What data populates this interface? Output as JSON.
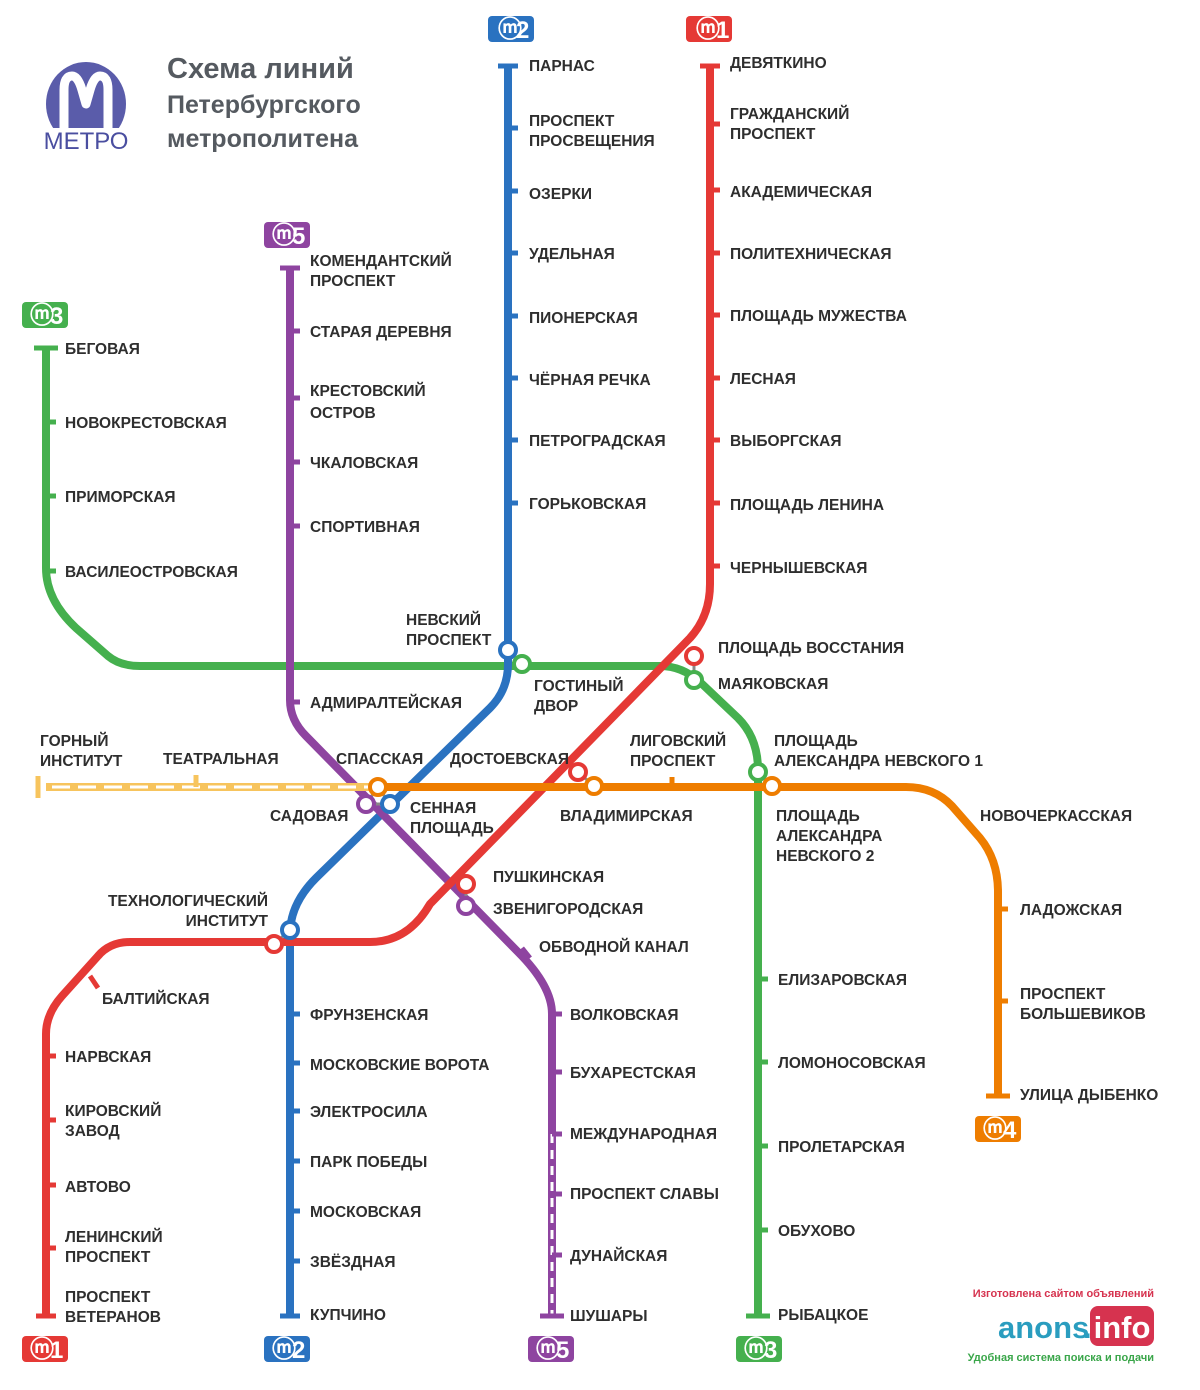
{
  "header": {
    "title_line1": "Схема линий",
    "title_line2": "Петербургского",
    "title_line3": "метрополитена"
  },
  "logo": {
    "text": "МЕТРО",
    "icon": "metro-m-icon",
    "color": "#5a5caa"
  },
  "colors": {
    "line1": "#e53935",
    "line2": "#2a72c0",
    "line3": "#45b04e",
    "line4": "#ee7d00",
    "line5": "#8e44a0",
    "planned": "#f7c45d"
  },
  "badges": {
    "l2_top": "2",
    "l1_top": "1",
    "l5_top": "5",
    "l3_top": "3",
    "l4_bottom": "4",
    "l1_bottom": "1",
    "l2_bottom": "2",
    "l5_bottom": "5",
    "l3_bottom": "3"
  },
  "stations": {
    "parnas": "ПАРНАС",
    "pr_prosv_1": "ПРОСПЕКТ",
    "pr_prosv_2": "ПРОСВЕЩЕНИЯ",
    "ozerki": "ОЗЕРКИ",
    "udelnaya": "УДЕЛЬНАЯ",
    "pionerskaya": "ПИОНЕРСКАЯ",
    "chernaya": "ЧЁРНАЯ РЕЧКА",
    "petrogradskaya": "ПЕТРОГРАДСКАЯ",
    "gorkovskaya": "ГОРЬКОВСКАЯ",
    "nevsky_1": "НЕВСКИЙ",
    "nevsky_2": "ПРОСПЕКТ",
    "devyatkino": "ДЕВЯТКИНО",
    "grazhd_1": "ГРАЖДАНСКИЙ",
    "grazhd_2": "ПРОСПЕКТ",
    "akadem": "АКАДЕМИЧЕСКАЯ",
    "polytech": "ПОЛИТЕХНИЧЕСКАЯ",
    "muzhestva": "ПЛОЩАДЬ МУЖЕСТВА",
    "lesnaya": "ЛЕСНАЯ",
    "vyborgskaya": "ВЫБОРГСКАЯ",
    "pl_lenina": "ПЛОЩАДЬ ЛЕНИНА",
    "chernyshevskaya": "ЧЕРНЫШЕВСКАЯ",
    "vosstaniya": "ПЛОЩАДЬ ВОССТАНИЯ",
    "mayakovskaya": "МАЯКОВСКАЯ",
    "komend_1": "КОМЕНДАНТСКИЙ",
    "komend_2": "ПРОСПЕКТ",
    "staraya": "СТАРАЯ ДЕРЕВНЯ",
    "krest_1": "КРЕСТОВСКИЙ",
    "krest_2": "ОСТРОВ",
    "chkalovskaya": "ЧКАЛОВСКАЯ",
    "sportivnaya": "СПОРТИВНАЯ",
    "admiralteyskaya": "АДМИРАЛТЕЙСКАЯ",
    "begovaya": "БЕГОВАЯ",
    "novokrest": "НОВОКРЕСТОВСКАЯ",
    "primorskaya": "ПРИМОРСКАЯ",
    "vasileostr": "ВАСИЛЕОСТРОВСКАЯ",
    "gost_1": "ГОСТИНЫЙ",
    "gost_2": "ДВОР",
    "gorny_1": "ГОРНЫЙ",
    "gorny_2": "ИНСТИТУТ",
    "teatralnaya": "ТЕАТРАЛЬНАЯ",
    "spasskaya": "СПАССКАЯ",
    "dostoevskaya": "ДОСТОЕВСКАЯ",
    "ligov_1": "ЛИГОВСКИЙ",
    "ligov_2": "ПРОСПЕКТ",
    "plan_1_a": "ПЛОЩАДЬ",
    "plan_1_b": "АЛЕКСАНДРА НЕВСКОГО  1",
    "sadovaya": "САДОВАЯ",
    "sennaya_1": "СЕННАЯ",
    "sennaya_2": "ПЛОЩАДЬ",
    "vladimirskaya": "ВЛАДИМИРСКАЯ",
    "plan_2_a": "ПЛОЩАДЬ",
    "plan_2_b": "АЛЕКСАНДРА",
    "plan_2_c": "НЕВСКОГО  2",
    "novocherk": "НОВОЧЕРКАССКАЯ",
    "pushkinskaya": "ПУШКИНСКАЯ",
    "zvenigorodskaya": "ЗВЕНИГОРОДСКАЯ",
    "tech_1": "ТЕХНОЛОГИЧЕСКИЙ",
    "tech_2": "ИНСТИТУТ",
    "obvodny": "ОБВОДНОЙ КАНАЛ",
    "ladozhskaya": "ЛАДОЖСКАЯ",
    "baltiyskaya": "БАЛТИЙСКАЯ",
    "narvskaya": "НАРВСКАЯ",
    "kirov_1": "КИРОВСКИЙ",
    "kirov_2": "ЗАВОД",
    "avtovo": "АВТОВО",
    "leninsky_1": "ЛЕНИНСКИЙ",
    "leninsky_2": "ПРОСПЕКТ",
    "veteranov_1": "ПРОСПЕКТ",
    "veteranov_2": "ВЕТЕРАНОВ",
    "frunzenskaya": "ФРУНЗЕНСКАЯ",
    "mosk_vorota": "МОСКОВСКИЕ ВОРОТА",
    "elektrosila": "ЭЛЕКТРОСИЛА",
    "park_pobedy": "ПАРК ПОБЕДЫ",
    "moskovskaya": "МОСКОВСКАЯ",
    "zvezdnaya": "ЗВЁЗДНАЯ",
    "kupchino": "КУПЧИНО",
    "volkovskaya": "ВОЛКОВСКАЯ",
    "bukharestskaya": "БУХАРЕСТСКАЯ",
    "mezhdunarodnaya": "МЕЖДУНАРОДНАЯ",
    "pr_slavy": "ПРОСПЕКТ СЛАВЫ",
    "dunayskaya": "ДУНАЙСКАЯ",
    "shushary": "ШУШАРЫ",
    "elizarovskaya": "ЕЛИЗАРОВСКАЯ",
    "lomonosovskaya": "ЛОМОНОСОВСКАЯ",
    "proletarskaya": "ПРОЛЕТАРСКАЯ",
    "obukhovo": "ОБУХОВО",
    "rybatskoe": "РЫБАЦКОЕ",
    "pr_bolsh_1": "ПРОСПЕКТ",
    "pr_bolsh_2": "БОЛЬШЕВИКОВ",
    "dybenko": "УЛИЦА ДЫБЕНКО"
  },
  "ad": {
    "top": "Изготовлена сайтом объявлений",
    "brand": "anons",
    "dot": ".",
    "info": "info",
    "bottom": "Удобная система поиска и подачи"
  }
}
